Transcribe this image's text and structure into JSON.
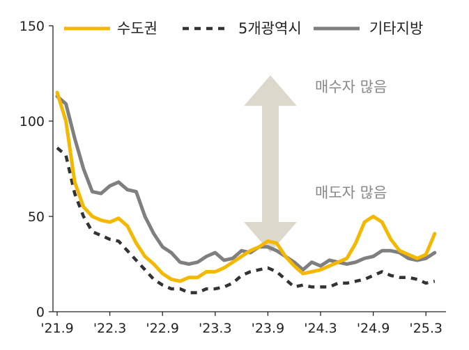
{
  "chart_data": {
    "type": "line",
    "title": "",
    "xlabel": "",
    "ylabel": "",
    "ylim": [
      0,
      150
    ],
    "yticks": [
      0,
      50,
      100,
      150
    ],
    "xtick_labels": [
      "'21.9",
      "'22.3",
      "'22.9",
      "'23.3",
      "'23.9",
      "'24.3",
      "'24.9",
      "'25.3"
    ],
    "xtick_index": [
      0,
      6,
      12,
      18,
      24,
      30,
      36,
      42
    ],
    "legend_position": "top",
    "grid": false,
    "series": [
      {
        "name": "수도권",
        "color": "#F5B800",
        "style": "solid",
        "values": [
          115,
          100,
          68,
          55,
          50,
          48,
          47,
          49,
          45,
          36,
          29,
          25,
          20,
          17,
          16,
          18,
          18,
          21,
          21,
          23,
          26,
          29,
          32,
          34,
          37,
          36,
          29,
          24,
          20,
          21,
          22,
          24,
          26,
          28,
          36,
          47,
          50,
          47,
          38,
          32,
          30,
          28,
          30,
          41
        ]
      },
      {
        "name": "5개광역시",
        "color": "#333333",
        "style": "dashed",
        "values": [
          86,
          82,
          62,
          50,
          42,
          40,
          38,
          37,
          32,
          27,
          22,
          17,
          14,
          12,
          12,
          10,
          10,
          12,
          12,
          13,
          15,
          19,
          21,
          22,
          23,
          21,
          17,
          13,
          14,
          13,
          13,
          13,
          15,
          15,
          16,
          17,
          19,
          21,
          19,
          18,
          18,
          17,
          15,
          16
        ]
      },
      {
        "name": "기타지방",
        "color": "#7F7F7F",
        "style": "solid",
        "values": [
          113,
          109,
          91,
          75,
          63,
          62,
          66,
          68,
          64,
          63,
          50,
          41,
          34,
          31,
          26,
          25,
          26,
          29,
          31,
          27,
          28,
          32,
          31,
          34,
          34,
          32,
          29,
          26,
          22,
          26,
          24,
          27,
          26,
          25,
          26,
          28,
          29,
          32,
          32,
          31,
          28,
          27,
          28,
          31
        ]
      }
    ],
    "annotations": {
      "top": "매수자 많음",
      "bottom": "매도자 많음"
    }
  },
  "colors": {
    "arrow": "#DCD9CC"
  }
}
